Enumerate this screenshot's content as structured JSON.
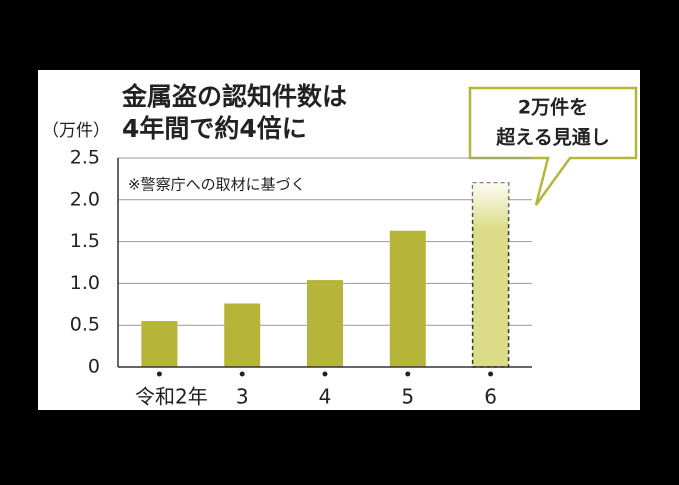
{
  "chart_data": {
    "type": "bar",
    "title": [
      "金属盗の認知件数は",
      "4年間で約4倍に"
    ],
    "y_axis_label": "（万件）",
    "note": "※警察庁への取材に基づく",
    "annotation": [
      "2万件を",
      "超える見通し"
    ],
    "categories": [
      "令和2年",
      "3",
      "4",
      "5",
      "6"
    ],
    "values": [
      0.55,
      0.76,
      1.04,
      1.63,
      2.2
    ],
    "colors": [
      "#b6b53a",
      "#b6b53a",
      "#b6b53a",
      "#b6b53a",
      "#dcdc88"
    ],
    "ylim": [
      0,
      2.5
    ],
    "yticks": [
      0,
      0.5,
      {
        "value": 1,
        "label": "1.0"
      },
      1.5,
      {
        "value": 2,
        "label": "2.0"
      },
      2.5
    ],
    "grid": true
  }
}
